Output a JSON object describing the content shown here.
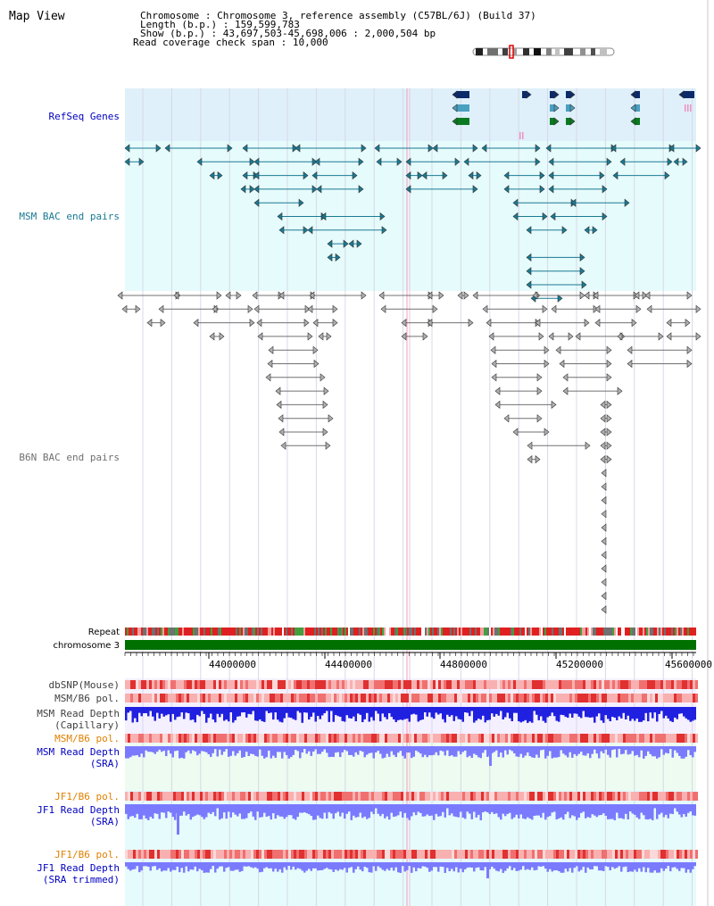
{
  "page": {
    "title": "Map View"
  },
  "header": {
    "rows": [
      {
        "key": "Chromosome    ",
        "value": "Chromosome 3, reference assembly (C57BL/6J) (Build 37)"
      },
      {
        "key": "Length (b.p.) ",
        "value": "159,599,783"
      },
      {
        "key": "  Show (b.p.) ",
        "value": "43,697,503-45,698,006 : 2,000,504 bp"
      },
      {
        "key": "Read coverage check span ",
        "value": "10,000"
      }
    ]
  },
  "tracks": {
    "refseq": "RefSeq Genes",
    "msm_bac": "MSM BAC end pairs",
    "b6n_bac": "B6N BAC end pairs",
    "repeat": "Repeat",
    "chromosome": "chromosome 3"
  },
  "axis": {
    "ticks": [
      "44000000",
      "44400000",
      "44800000",
      "45200000",
      "45600000"
    ]
  },
  "bottom_tracks": [
    {
      "label": "dbSNP(Mouse)",
      "color": "#404040"
    },
    {
      "label": "MSM/B6 pol.",
      "color": "#404040"
    },
    {
      "label": "MSM Read Depth",
      "label2": "(Capillary)",
      "color": "#404040"
    },
    {
      "label": "MSM/B6 pol.",
      "color": "#e08000"
    },
    {
      "label": "MSM Read Depth",
      "label2": "(SRA)",
      "color": "#0000c0"
    },
    {
      "label": "JF1/B6 pol.",
      "color": "#e08000"
    },
    {
      "label": "JF1 Read Depth",
      "label2": "(SRA)",
      "color": "#0000c0"
    },
    {
      "label": "JF1/B6 pol.",
      "color": "#e08000"
    },
    {
      "label": "JF1 Read Depth",
      "label2": "(SRA trimmed)",
      "color": "#0000c0"
    }
  ],
  "colors": {
    "refseq_bg": "#dff0fa",
    "msm_bg": "#e6fbfb",
    "msm_line": "#1a7a94",
    "b6n_line": "#707070",
    "gene_navy": "#0a2a6a",
    "gene_teal": "#4aa0c0",
    "gene_green": "#0a7a20",
    "chrom_bar": "#007000",
    "depth_blue": "#2020e0",
    "depth_soft": "#7a7aff",
    "label_blue": "#0000c0",
    "label_orange": "#e08000"
  }
}
